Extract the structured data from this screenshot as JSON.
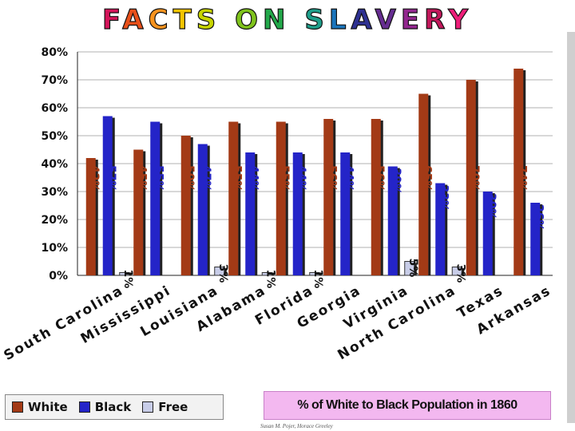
{
  "title": "FACTS ON SLAVERY",
  "title_colors": [
    "#d4145a",
    "#e8501a",
    "#f7931e",
    "#f2c500",
    "#c7d400",
    "#7fc31c",
    "#22a84a",
    "#1e9e8a",
    "#1b75bc",
    "#2e3192",
    "#662d91",
    "#93278f",
    "#c2185b",
    "#ed1e79"
  ],
  "subtitle": "% of White to Black Population in 1860",
  "credit": "Susan M. Pojer, Horace Greeley",
  "colors": {
    "white": "#a33a16",
    "black": "#2424c8",
    "free": "#c8cde8"
  },
  "chart_data": {
    "type": "bar",
    "categories": [
      "South Carolina",
      "Mississippi",
      "Louisiana",
      "Alabama",
      "Florida",
      "Georgia",
      "Virginia",
      "North Carolina",
      "Texas",
      "Arkansas"
    ],
    "series": [
      {
        "name": "White",
        "values": [
          42,
          45,
          50,
          55,
          55,
          56,
          56,
          65,
          70,
          74
        ],
        "labels": [
          "42%",
          "45%",
          "50%",
          "55%",
          "55%",
          "56%",
          "56%",
          "65%",
          "70%",
          "74%"
        ]
      },
      {
        "name": "Black",
        "values": [
          57,
          55,
          47,
          44,
          44,
          44,
          39,
          33,
          30,
          26
        ],
        "labels": [
          "57%",
          "55%",
          "47%",
          "44%",
          "44%",
          "44%",
          "39%",
          "33%",
          "30%",
          "26%"
        ]
      },
      {
        "name": "Free",
        "values": [
          1,
          0,
          3,
          1,
          1,
          0,
          5,
          3,
          0,
          0
        ],
        "labels": [
          "1%",
          "",
          "3%",
          "1%",
          "1%",
          "",
          "5%",
          "3%",
          "",
          ""
        ]
      }
    ],
    "ylim": [
      0,
      80
    ],
    "yticks": [
      "0%",
      "10%",
      "20%",
      "30%",
      "40%",
      "50%",
      "60%",
      "70%",
      "80%"
    ],
    "grid": true,
    "legend_position": "bottom-left"
  }
}
